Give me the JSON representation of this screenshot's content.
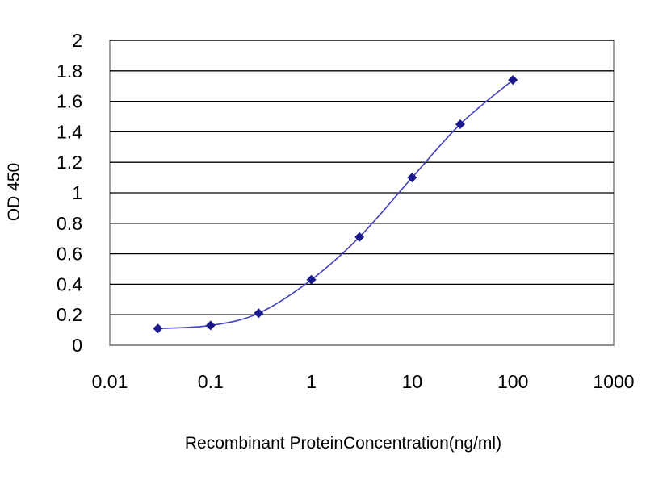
{
  "chart_data": {
    "type": "line",
    "title": "",
    "xlabel": "Recombinant ProteinConcentration(ng/ml)",
    "ylabel": "OD 450",
    "x_scale": "log",
    "xlim": [
      0.01,
      1000
    ],
    "ylim": [
      0,
      2
    ],
    "x_ticks": [
      0.01,
      0.1,
      1,
      10,
      100,
      1000
    ],
    "x_tick_labels": [
      "0.01",
      "0.1",
      "1",
      "10",
      "100",
      "1000"
    ],
    "y_ticks": [
      0,
      0.2,
      0.4,
      0.6,
      0.8,
      1,
      1.2,
      1.4,
      1.6,
      1.8,
      2
    ],
    "y_tick_labels": [
      "0",
      "0.2",
      "0.4",
      "0.6",
      "0.8",
      "1",
      "1.2",
      "1.4",
      "1.6",
      "1.8",
      "2"
    ],
    "grid": "horizontal",
    "legend": "none",
    "series": [
      {
        "marker": "diamond",
        "color": "#1a1a8c",
        "x": [
          0.03,
          0.1,
          0.3,
          1,
          3,
          10,
          30,
          100
        ],
        "y": [
          0.11,
          0.13,
          0.21,
          0.43,
          0.71,
          1.1,
          1.45,
          1.74
        ]
      }
    ],
    "colors": {
      "line": "#4040c0",
      "marker": "#1a1a8c",
      "grid": "#000000",
      "plot_border": "#808080"
    }
  }
}
